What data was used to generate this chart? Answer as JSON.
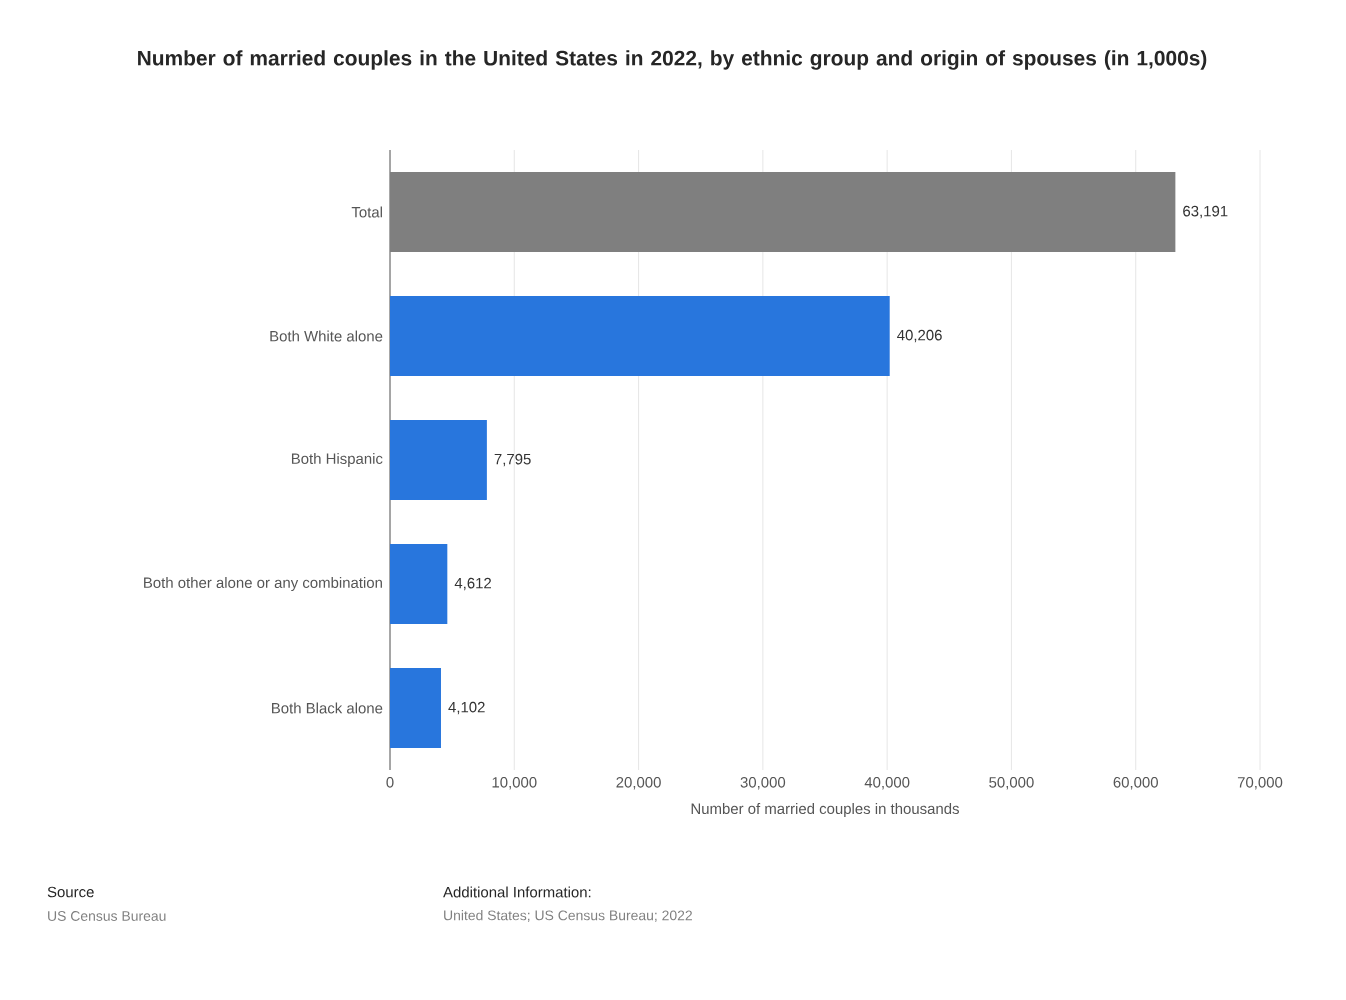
{
  "chart_data": {
    "type": "bar",
    "orientation": "horizontal",
    "title": "Number of married couples in the United States in 2022, by ethnic group and origin of spouses (in 1,000s)",
    "xlabel": "Number of married couples in thousands",
    "categories": [
      "Total",
      "Both White alone",
      "Both Hispanic",
      "Both other alone or any combination",
      "Both Black alone"
    ],
    "values": [
      63191,
      40206,
      7795,
      4612,
      4102
    ],
    "value_labels": [
      "63,191",
      "40,206",
      "7,795",
      "4,612",
      "4,102"
    ],
    "colors": [
      "#7f7f7f",
      "#2876dd",
      "#2876dd",
      "#2876dd",
      "#2876dd"
    ],
    "xlim": [
      0,
      70000
    ],
    "xticks": [
      0,
      {
        "value": 10000,
        "label": "10,000"
      },
      {
        "value": 20000,
        "label": "20,000"
      },
      {
        "value": 30000,
        "label": "30,000"
      },
      {
        "value": 40000,
        "label": "40,000"
      },
      {
        "value": 50000,
        "label": "50,000"
      },
      {
        "value": 60000,
        "label": "60,000"
      },
      {
        "value": 70000,
        "label": "70,000"
      }
    ],
    "grid": "x",
    "annotations": [
      "Source",
      "US Census Bureau",
      "Additional Information:",
      "United States; US Census Bureau; 2022"
    ]
  }
}
